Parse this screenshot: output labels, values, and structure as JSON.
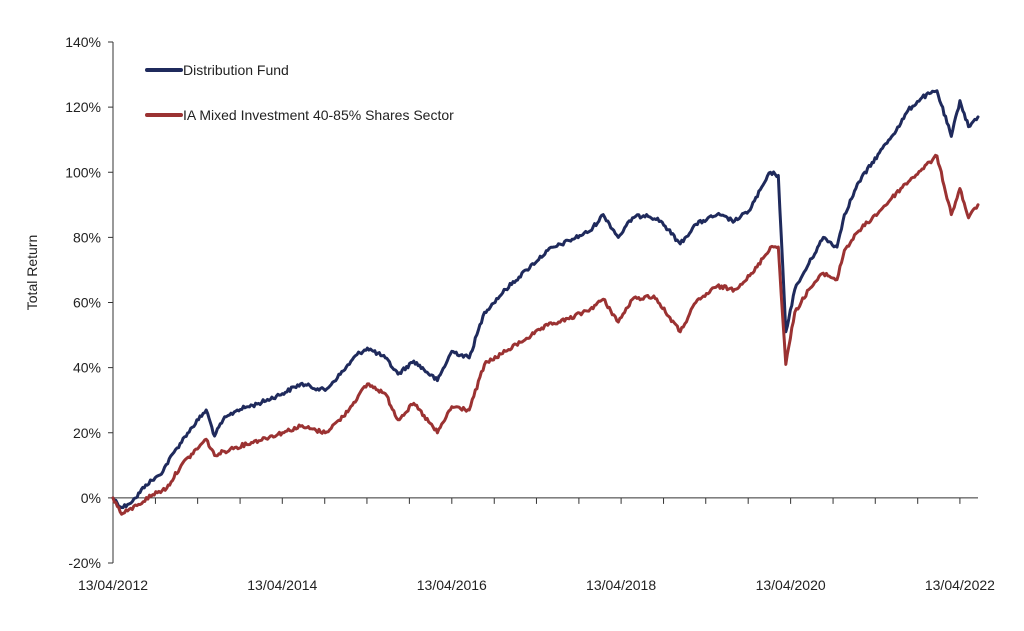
{
  "chart_data": {
    "type": "line",
    "title": "",
    "xlabel": "",
    "ylabel": "Total Return",
    "ylim": [
      -20,
      140
    ],
    "yticks": [
      -20,
      0,
      20,
      40,
      60,
      80,
      100,
      120,
      140
    ],
    "ytick_labels": [
      "-20%",
      "0%",
      "20%",
      "40%",
      "60%",
      "80%",
      "100%",
      "120%",
      "140%"
    ],
    "xlim": [
      "2012-04-13",
      "2022-06-30"
    ],
    "xtick_labels": [
      "13/04/2012",
      "13/04/2014",
      "13/04/2016",
      "13/04/2018",
      "13/04/2020",
      "13/04/2022"
    ],
    "grid": false,
    "legend_position": "top-left",
    "series": [
      {
        "name": "Distribution Fund",
        "color": "#1f2a5c",
        "points": [
          [
            "2012-04-13",
            0
          ],
          [
            "2012-05-20",
            -3
          ],
          [
            "2012-06-15",
            -2
          ],
          [
            "2012-07-20",
            0
          ],
          [
            "2012-09-01",
            4
          ],
          [
            "2012-11-01",
            7
          ],
          [
            "2013-01-01",
            14
          ],
          [
            "2013-03-01",
            20
          ],
          [
            "2013-05-20",
            27
          ],
          [
            "2013-06-25",
            19
          ],
          [
            "2013-08-01",
            24
          ],
          [
            "2013-10-01",
            27
          ],
          [
            "2014-01-01",
            29
          ],
          [
            "2014-04-13",
            32
          ],
          [
            "2014-07-01",
            35
          ],
          [
            "2014-10-15",
            33
          ],
          [
            "2015-01-01",
            39
          ],
          [
            "2015-03-01",
            44
          ],
          [
            "2015-04-15",
            46
          ],
          [
            "2015-07-01",
            43
          ],
          [
            "2015-08-25",
            38
          ],
          [
            "2015-11-01",
            42
          ],
          [
            "2016-02-11",
            36
          ],
          [
            "2016-04-13",
            45
          ],
          [
            "2016-06-27",
            43
          ],
          [
            "2016-09-01",
            57
          ],
          [
            "2016-12-01",
            64
          ],
          [
            "2017-03-01",
            70
          ],
          [
            "2017-06-01",
            76
          ],
          [
            "2017-09-01",
            79
          ],
          [
            "2017-12-01",
            82
          ],
          [
            "2018-01-26",
            87
          ],
          [
            "2018-04-01",
            80
          ],
          [
            "2018-06-01",
            86
          ],
          [
            "2018-08-01",
            87
          ],
          [
            "2018-10-01",
            85
          ],
          [
            "2018-12-24",
            78
          ],
          [
            "2019-03-01",
            84
          ],
          [
            "2019-06-01",
            87
          ],
          [
            "2019-08-15",
            85
          ],
          [
            "2019-10-15",
            88
          ],
          [
            "2020-01-17",
            100
          ],
          [
            "2020-02-20",
            99
          ],
          [
            "2020-03-23",
            51
          ],
          [
            "2020-05-01",
            64
          ],
          [
            "2020-07-01",
            72
          ],
          [
            "2020-09-01",
            80
          ],
          [
            "2020-10-30",
            77
          ],
          [
            "2020-12-01",
            87
          ],
          [
            "2021-02-01",
            97
          ],
          [
            "2021-05-01",
            106
          ],
          [
            "2021-08-01",
            115
          ],
          [
            "2021-09-01",
            119
          ],
          [
            "2021-11-01",
            123
          ],
          [
            "2022-01-04",
            125
          ],
          [
            "2022-03-07",
            111
          ],
          [
            "2022-04-13",
            122
          ],
          [
            "2022-05-20",
            114
          ],
          [
            "2022-06-30",
            117
          ]
        ]
      },
      {
        "name": "IA Mixed Investment 40-85% Shares Sector",
        "color": "#9b3232",
        "points": [
          [
            "2012-04-13",
            0
          ],
          [
            "2012-05-20",
            -5
          ],
          [
            "2012-06-15",
            -4
          ],
          [
            "2012-08-01",
            -2
          ],
          [
            "2012-10-01",
            1
          ],
          [
            "2012-12-01",
            3
          ],
          [
            "2013-02-01",
            10
          ],
          [
            "2013-05-20",
            18
          ],
          [
            "2013-06-25",
            13
          ],
          [
            "2013-09-01",
            15
          ],
          [
            "2013-12-01",
            17
          ],
          [
            "2014-04-13",
            20
          ],
          [
            "2014-07-01",
            22
          ],
          [
            "2014-10-15",
            20
          ],
          [
            "2015-01-01",
            25
          ],
          [
            "2015-04-15",
            35
          ],
          [
            "2015-07-01",
            32
          ],
          [
            "2015-08-25",
            24
          ],
          [
            "2015-11-01",
            29
          ],
          [
            "2016-02-11",
            20
          ],
          [
            "2016-04-13",
            28
          ],
          [
            "2016-06-27",
            27
          ],
          [
            "2016-09-01",
            41
          ],
          [
            "2016-12-01",
            45
          ],
          [
            "2017-03-01",
            49
          ],
          [
            "2017-06-01",
            53
          ],
          [
            "2017-09-01",
            55
          ],
          [
            "2017-12-01",
            58
          ],
          [
            "2018-01-26",
            61
          ],
          [
            "2018-04-01",
            54
          ],
          [
            "2018-06-01",
            61
          ],
          [
            "2018-09-01",
            62
          ],
          [
            "2018-12-24",
            51
          ],
          [
            "2019-03-01",
            60
          ],
          [
            "2019-06-01",
            65
          ],
          [
            "2019-08-15",
            64
          ],
          [
            "2019-11-01",
            69
          ],
          [
            "2020-01-17",
            77
          ],
          [
            "2020-02-20",
            77
          ],
          [
            "2020-03-23",
            41
          ],
          [
            "2020-05-01",
            57
          ],
          [
            "2020-07-01",
            64
          ],
          [
            "2020-09-01",
            69
          ],
          [
            "2020-10-30",
            67
          ],
          [
            "2020-12-01",
            76
          ],
          [
            "2021-02-01",
            82
          ],
          [
            "2021-05-01",
            88
          ],
          [
            "2021-08-01",
            95
          ],
          [
            "2021-11-01",
            101
          ],
          [
            "2022-01-04",
            105
          ],
          [
            "2022-03-07",
            87
          ],
          [
            "2022-04-13",
            95
          ],
          [
            "2022-05-20",
            86
          ],
          [
            "2022-06-30",
            90
          ]
        ]
      }
    ]
  }
}
